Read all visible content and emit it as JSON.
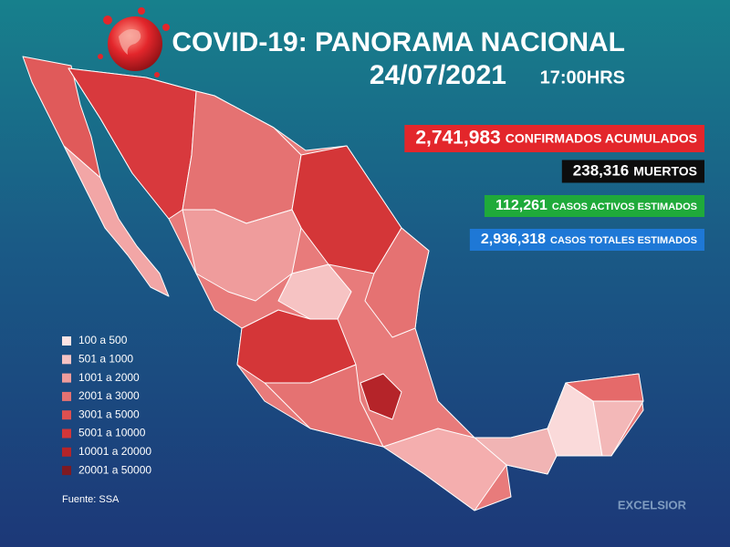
{
  "header": {
    "title": "COVID-19: PANORAMA NACIONAL",
    "date": "24/07/2021",
    "time": "17:00HRS"
  },
  "stats": [
    {
      "value": "2,741,983",
      "label": "CONFIRMADOS ACUMULADOS",
      "color": "#e3262b"
    },
    {
      "value": "238,316",
      "label": "MUERTOS",
      "color": "#0d0d0d"
    },
    {
      "value": "112,261",
      "label": "CASOS ACTIVOS ESTIMADOS",
      "color": "#1faa3a"
    },
    {
      "value": "2,936,318",
      "label": "CASOS TOTALES ESTIMADOS",
      "color": "#1e78d6"
    }
  ],
  "legend": [
    {
      "label": "100 a 500",
      "color": "#fde4e4"
    },
    {
      "label": "501 a 1000",
      "color": "#f6c3c3"
    },
    {
      "label": "1001 a 2000",
      "color": "#ef9c9c"
    },
    {
      "label": "2001 a 3000",
      "color": "#e57272"
    },
    {
      "label": "3001 a 5000",
      "color": "#de5050"
    },
    {
      "label": "5001 a 10000",
      "color": "#d43638"
    },
    {
      "label": "10001 a 20000",
      "color": "#b52429"
    },
    {
      "label": "20001 a 50000",
      "color": "#7e1a22"
    }
  ],
  "source": "Fuente: SSA",
  "brand": "EXCELSIOR"
}
